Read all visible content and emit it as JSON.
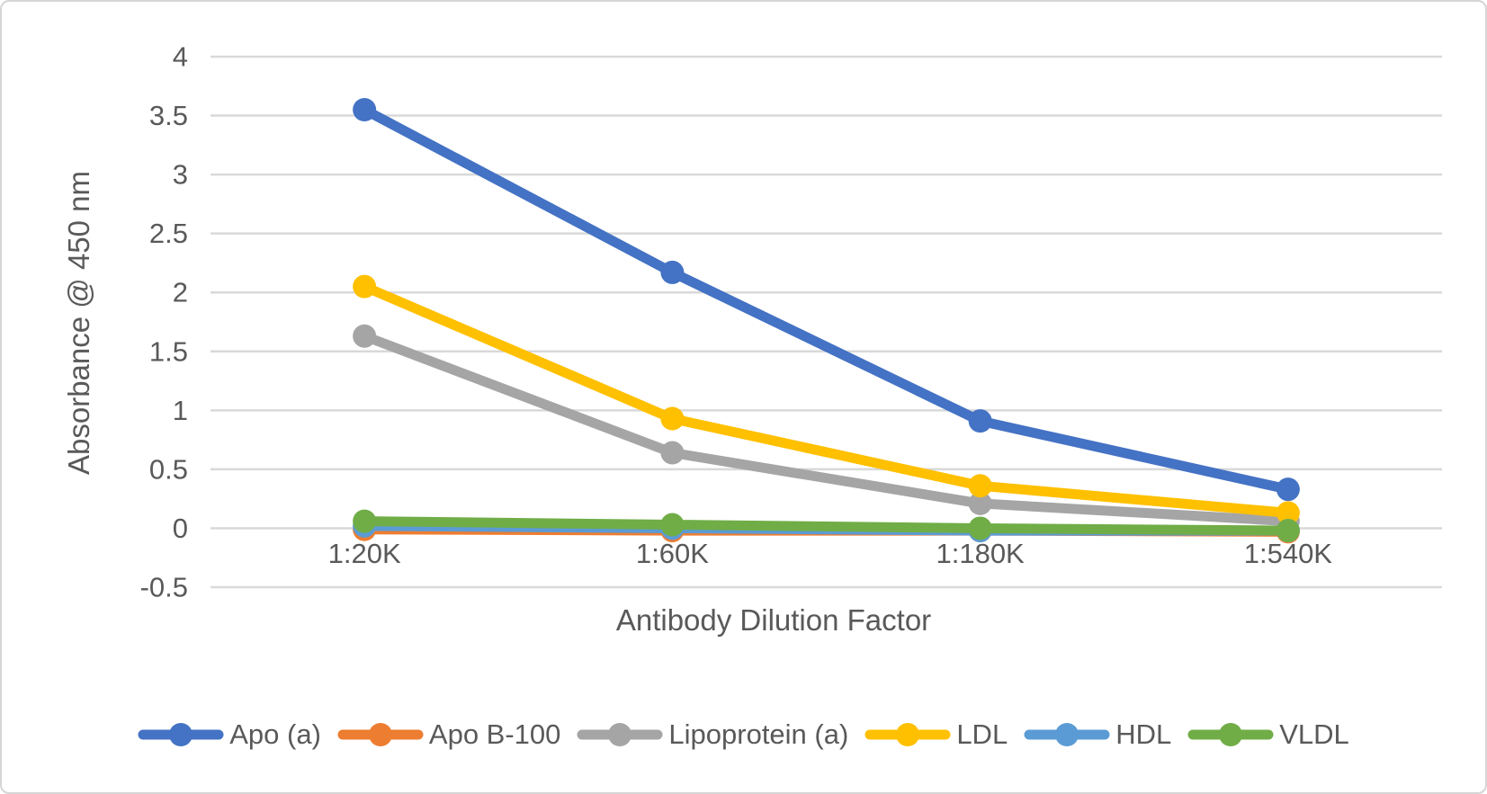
{
  "chart_data": {
    "type": "line",
    "title": "",
    "xlabel": "Antibody Dilution Factor",
    "ylabel": "Absorbance @ 450 nm",
    "categories": [
      "1:20K",
      "1:60K",
      "1:180K",
      "1:540K"
    ],
    "series": [
      {
        "name": "Apo (a)",
        "color": "#4472C4",
        "values": [
          3.55,
          2.17,
          0.91,
          0.33
        ]
      },
      {
        "name": "Apo B-100",
        "color": "#ED7D31",
        "values": [
          -0.01,
          -0.02,
          -0.02,
          -0.03
        ]
      },
      {
        "name": "Lipoprotein (a)",
        "color": "#A5A5A5",
        "values": [
          1.63,
          0.64,
          0.21,
          0.06
        ]
      },
      {
        "name": "LDL",
        "color": "#FFC000",
        "values": [
          2.05,
          0.93,
          0.36,
          0.13
        ]
      },
      {
        "name": "HDL",
        "color": "#5B9BD5",
        "values": [
          0.02,
          0.0,
          -0.02,
          -0.02
        ]
      },
      {
        "name": "VLDL",
        "color": "#70AD47",
        "values": [
          0.06,
          0.03,
          0.0,
          -0.02
        ]
      }
    ],
    "ylim": [
      -0.5,
      4
    ],
    "ytick_step": 0.5,
    "yticks": [
      4,
      3.5,
      3,
      2.5,
      2,
      1.5,
      1,
      0.5,
      0,
      -0.5
    ],
    "grid": true,
    "marker": "circle",
    "legend_position": "bottom",
    "colors": {
      "gridline": "#D9D9D9",
      "text": "#595959",
      "border": "#D6D6D6",
      "background": "#FFFFFF"
    }
  }
}
